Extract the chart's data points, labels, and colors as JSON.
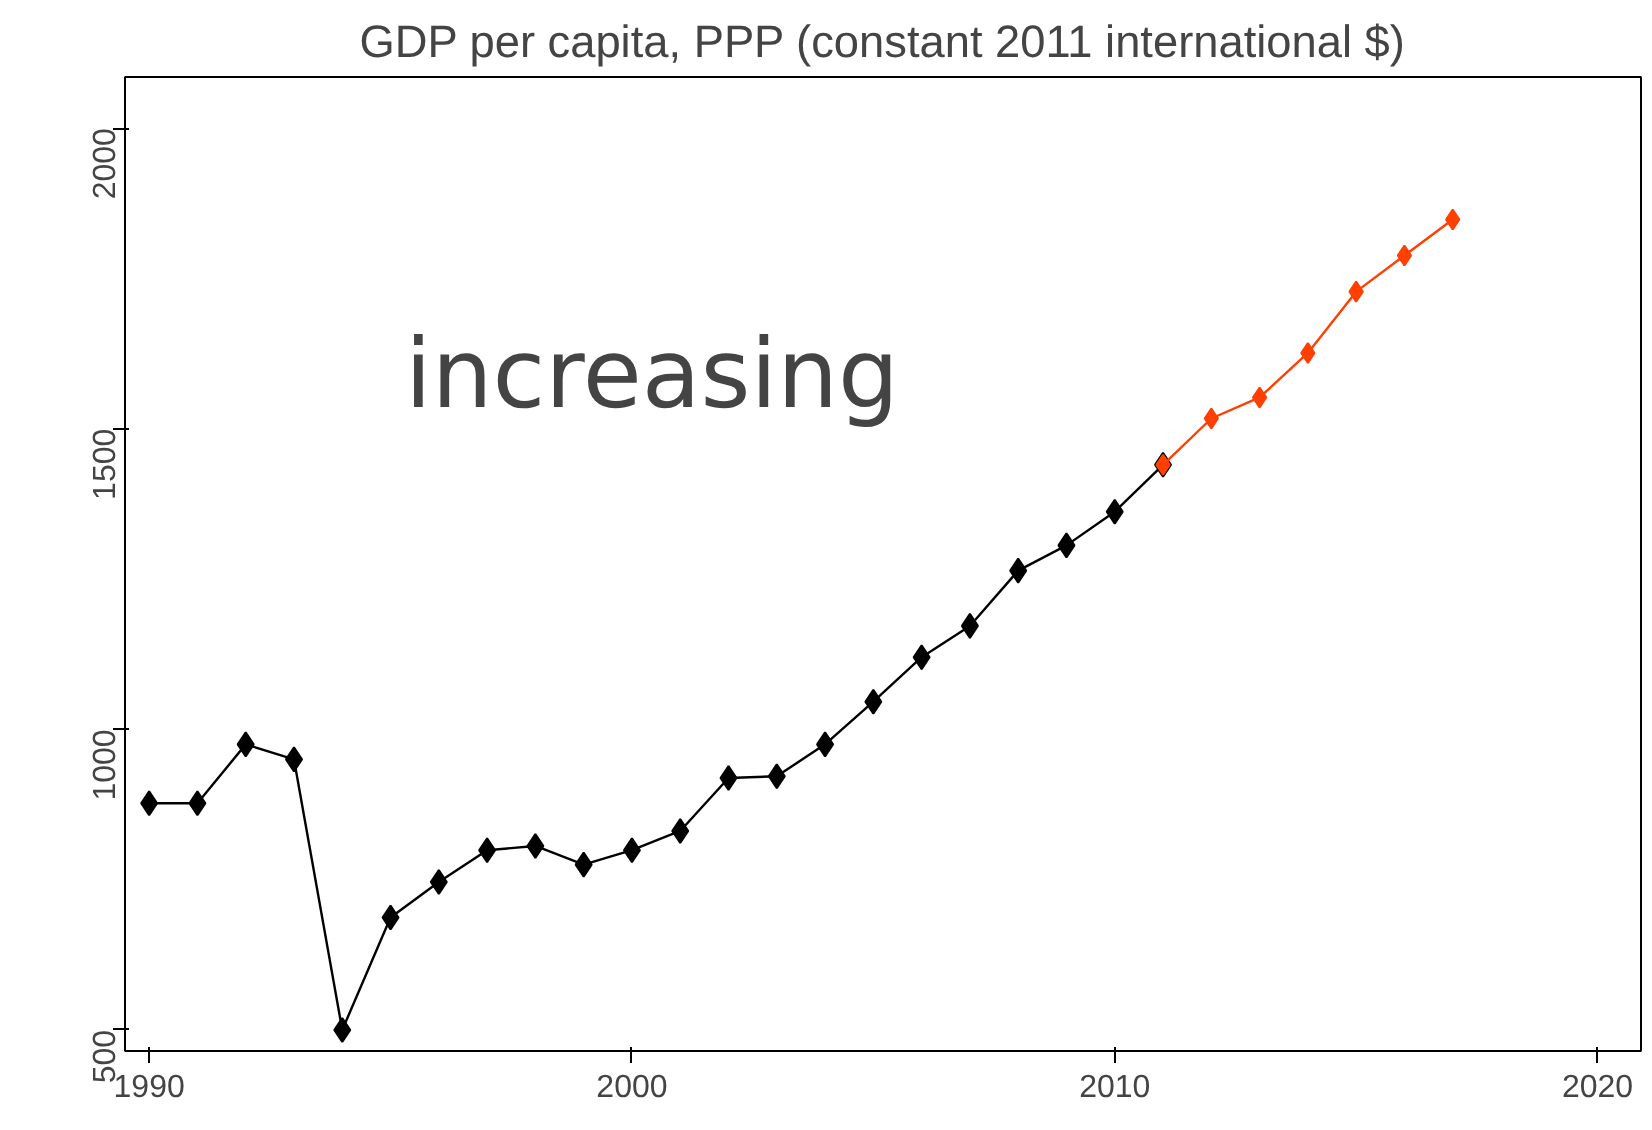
{
  "chart_data": {
    "type": "line",
    "title": "GDP per capita, PPP (constant 2011 international $)",
    "annotations": [
      "increasing"
    ],
    "xlim": [
      1989.5,
      2020.9
    ],
    "xticks": [
      1990,
      2000,
      2010,
      2020
    ],
    "ylim": [
      465,
      2085
    ],
    "yticks": [
      500,
      1000,
      1500,
      2000
    ],
    "grid": false,
    "marker": "diamond",
    "line_style": "solid",
    "series": [
      {
        "color": "#000000",
        "x": [
          1990,
          1991,
          1992,
          1993,
          1994,
          1995,
          1996,
          1997,
          1998,
          1999,
          2000,
          2001,
          2002,
          2003,
          2004,
          2005,
          2006,
          2007,
          2008,
          2009,
          2010,
          2011
        ],
        "values": [
          877,
          877,
          975,
          950,
          500,
          687,
          746,
          799,
          806,
          775,
          799,
          831,
          919,
          922,
          975,
          1046,
          1120,
          1172,
          1264,
          1306,
          1362,
          1440
        ]
      },
      {
        "color": "#ff4000",
        "x": [
          2011,
          2012,
          2013,
          2014,
          2015,
          2016,
          2017
        ],
        "values": [
          1440,
          1517,
          1552,
          1626,
          1728,
          1788,
          1848
        ]
      }
    ]
  }
}
